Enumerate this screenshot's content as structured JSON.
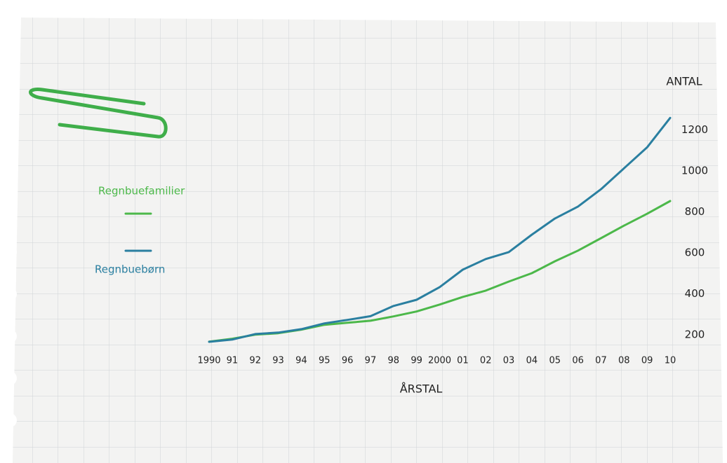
{
  "chart_data": {
    "type": "line",
    "y_label": "ANTAL",
    "x_label": "ÅRSTAL",
    "categories": [
      "1990",
      "91",
      "92",
      "93",
      "94",
      "95",
      "96",
      "97",
      "98",
      "99",
      "2000",
      "01",
      "02",
      "03",
      "04",
      "05",
      "06",
      "07",
      "08",
      "09",
      "10"
    ],
    "series": [
      {
        "name": "Regnbuefamilier",
        "color": "#4cb84a",
        "values": [
          166,
          180,
          200,
          207,
          224,
          248,
          258,
          268,
          289,
          313,
          347,
          384,
          415,
          459,
          500,
          558,
          610,
          671,
          732,
          790,
          852
        ]
      },
      {
        "name": "Regnbuebørn",
        "color": "#2a7fa0",
        "values": [
          165,
          176,
          203,
          210,
          227,
          255,
          272,
          290,
          340,
          370,
          432,
          517,
          569,
          603,
          688,
          767,
          825,
          910,
          1012,
          1114,
          1258
        ]
      }
    ],
    "ylim": [
      100,
      1300
    ],
    "yticks": [
      200,
      400,
      600,
      800,
      1000,
      1200
    ],
    "grid": false
  }
}
